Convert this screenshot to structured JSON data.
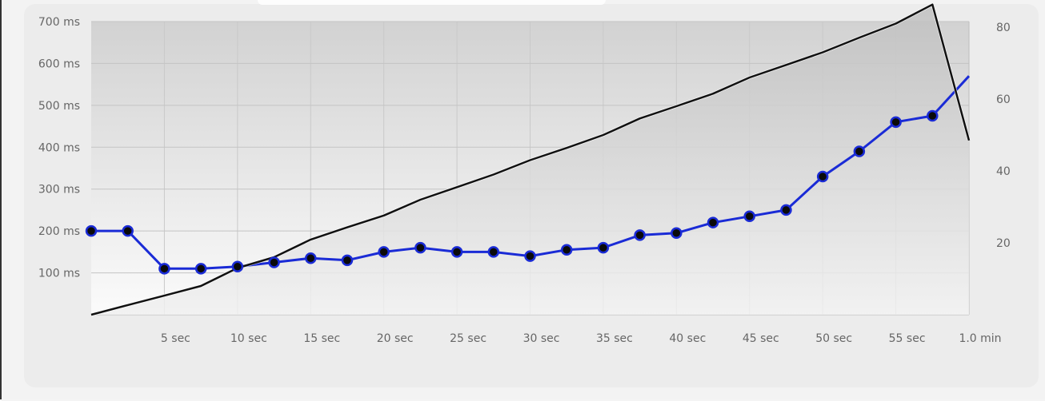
{
  "chart_data": {
    "type": "line",
    "x_ticks": [
      "5 sec",
      "10 sec",
      "15 sec",
      "20 sec",
      "25 sec",
      "30 sec",
      "35 sec",
      "40 sec",
      "45 sec",
      "50 sec",
      "55 sec",
      "1.0 min"
    ],
    "y_left_ticks": [
      "700 ms",
      "600 ms",
      "500 ms",
      "400 ms",
      "300 ms",
      "200 ms",
      "100 ms"
    ],
    "y_right_ticks": [
      "80",
      "60",
      "40",
      "20"
    ],
    "xlim": [
      0,
      60
    ],
    "ylim_left": [
      0,
      700
    ],
    "ylim_right": [
      0,
      80
    ],
    "grid": true,
    "series": [
      {
        "color": "#1a2bd6",
        "axis": "left",
        "markers": true,
        "x": [
          0,
          2.5,
          5,
          7.5,
          10,
          12.5,
          15,
          17.5,
          20,
          22.5,
          25,
          27.5,
          30,
          32.5,
          35,
          37.5,
          40,
          42.5,
          45,
          47.5,
          50,
          52.5,
          55,
          57.5,
          60
        ],
        "y": [
          200,
          200,
          110,
          110,
          115,
          125,
          135,
          130,
          150,
          160,
          150,
          150,
          140,
          155,
          160,
          190,
          195,
          220,
          235,
          250,
          330,
          390,
          460,
          475,
          570
        ]
      },
      {
        "color": "#111111",
        "axis": "right",
        "markers": false,
        "filled": true,
        "x": [
          0,
          2.5,
          5,
          7.5,
          10,
          12.5,
          15,
          17.5,
          20,
          22.5,
          25,
          27.5,
          30,
          32.5,
          35,
          37.5,
          40,
          42.5,
          45,
          47.5,
          50,
          52.5,
          55,
          57.5,
          60
        ],
        "y": [
          0,
          2.7,
          5.3,
          8.0,
          13.0,
          16.0,
          20.9,
          24.3,
          27.6,
          32.0,
          35.5,
          39.0,
          43.0,
          46.4,
          50.0,
          54.6,
          58.0,
          61.5,
          66.0,
          69.5,
          73.0,
          77.1,
          81.0,
          86.3,
          48.5
        ]
      }
    ]
  }
}
